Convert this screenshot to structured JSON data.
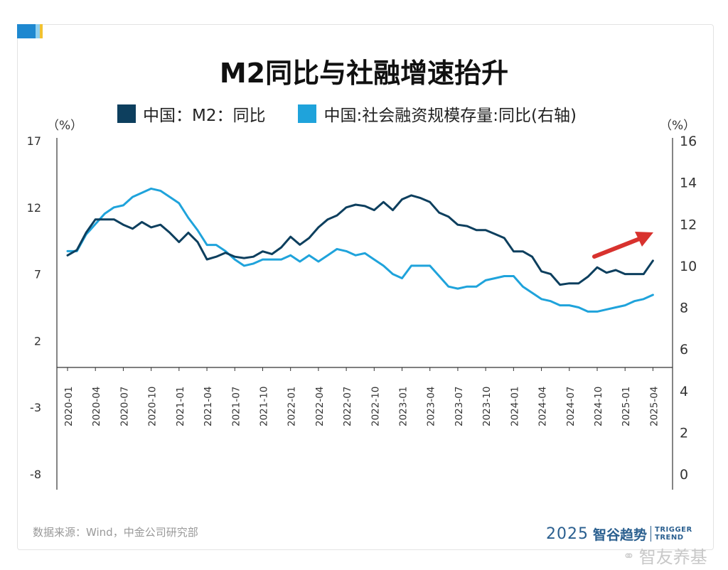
{
  "title": "M2同比与社融增速抬升",
  "legend": [
    {
      "label": "中国：M2：同比",
      "color": "#0d3f5e"
    },
    {
      "label": "中国:社会融资规模存量:同比(右轴)",
      "color": "#1fa3db"
    }
  ],
  "unit_left": "（%）",
  "unit_right": "（%）",
  "source": "数据来源：Wind，中金公司研究部",
  "brand": {
    "year": "2025",
    "name": "智谷趋势",
    "en1": "TRIGGER",
    "en2": "TREND"
  },
  "watermark": "智友养基",
  "colors": {
    "m2": "#0d3f5e",
    "tsf": "#1fa3db",
    "arrow": "#d8322e",
    "axis": "#333333"
  },
  "chart_data": {
    "type": "line",
    "left_axis": {
      "ylim": [
        -8,
        17
      ],
      "ticks": [
        17,
        12,
        7,
        2,
        -3,
        -8
      ]
    },
    "right_axis": {
      "ylim": [
        0,
        16
      ],
      "ticks": [
        16,
        14,
        12,
        10,
        8,
        6,
        4,
        2,
        0
      ]
    },
    "x_tick_labels": [
      "2020-01",
      "2020-04",
      "2020-07",
      "2020-10",
      "2021-01",
      "2021-04",
      "2021-07",
      "2021-10",
      "2022-01",
      "2022-04",
      "2022-07",
      "2022-10",
      "2023-01",
      "2023-04",
      "2023-07",
      "2023-10",
      "2024-01",
      "2024-04",
      "2024-07",
      "2024-10",
      "2025-01",
      "2025-04"
    ],
    "x_start": "2020-01",
    "series": [
      {
        "name": "中国：M2：同比",
        "axis": "left",
        "values": [
          8.4,
          8.8,
          10.1,
          11.1,
          11.1,
          11.1,
          10.7,
          10.4,
          10.9,
          10.5,
          10.7,
          10.1,
          9.4,
          10.1,
          9.4,
          8.1,
          8.3,
          8.6,
          8.3,
          8.2,
          8.3,
          8.7,
          8.5,
          9.0,
          9.8,
          9.2,
          9.7,
          10.5,
          11.1,
          11.4,
          12.0,
          12.2,
          12.1,
          11.8,
          12.4,
          11.8,
          12.6,
          12.9,
          12.7,
          12.4,
          11.6,
          11.3,
          10.7,
          10.6,
          10.3,
          10.3,
          10.0,
          9.7,
          8.7,
          8.7,
          8.3,
          7.2,
          7.0,
          6.2,
          6.3,
          6.3,
          6.8,
          7.5,
          7.1,
          7.3,
          7.0,
          7.0,
          7.0,
          8.0
        ]
      },
      {
        "name": "中国:社会融资规模存量:同比(右轴)",
        "axis": "right",
        "values": [
          10.7,
          10.7,
          11.5,
          12.0,
          12.5,
          12.8,
          12.9,
          13.3,
          13.5,
          13.7,
          13.6,
          13.3,
          13.0,
          12.3,
          11.7,
          11.0,
          11.0,
          10.7,
          10.3,
          10.0,
          10.1,
          10.3,
          10.3,
          10.3,
          10.5,
          10.2,
          10.5,
          10.2,
          10.5,
          10.8,
          10.7,
          10.5,
          10.6,
          10.3,
          10.0,
          9.6,
          9.4,
          10.0,
          10.0,
          10.0,
          9.5,
          9.0,
          8.9,
          9.0,
          9.0,
          9.3,
          9.4,
          9.5,
          9.5,
          9.0,
          8.7,
          8.4,
          8.3,
          8.1,
          8.1,
          8.0,
          7.8,
          7.8,
          7.9,
          8.0,
          8.1,
          8.3,
          8.4,
          8.6
        ]
      }
    ],
    "annotation": "upward-arrow"
  }
}
